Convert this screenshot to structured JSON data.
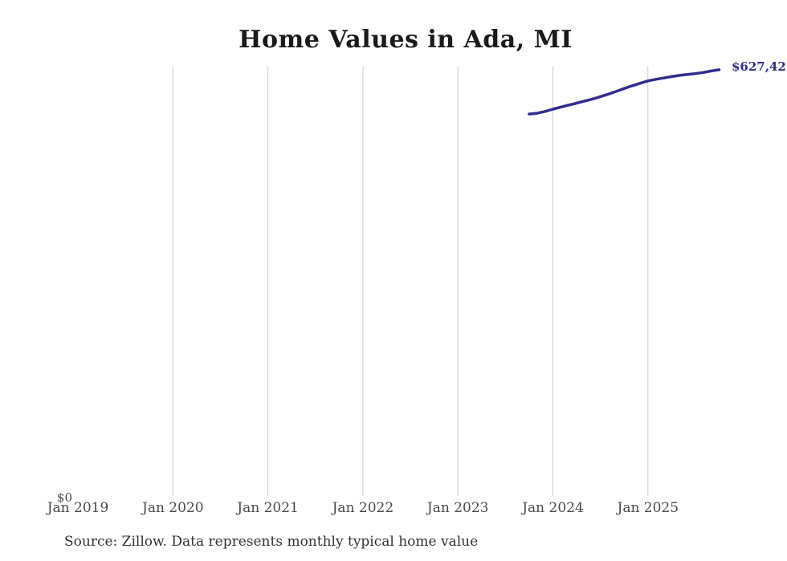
{
  "chart": {
    "title": "Home Values in Ada, MI",
    "source_note": "Source: Zillow. Data represents monthly typical home value",
    "y_zero_label": "$0",
    "end_label": "$627,42",
    "colors": {
      "line": "#322d8f",
      "grid": "#cccccc",
      "title_text": "#1a1a1a",
      "axis_text": "#4a4a4a"
    }
  },
  "chart_data": {
    "type": "line",
    "title": "Home Values in Ada, MI",
    "xlabel": "",
    "ylabel": "",
    "grid": "vertical-only",
    "legend_position": "none",
    "x_tick_labels": [
      "Jan 2019",
      "Jan 2020",
      "Jan 2021",
      "Jan 2022",
      "Jan 2023",
      "Jan 2024",
      "Jan 2025"
    ],
    "y_tick_labels": [
      "$0"
    ],
    "ylim": [
      0,
      632000
    ],
    "x_range": [
      "Jan 2019",
      "Oct 2025"
    ],
    "series": [
      {
        "name": "Monthly typical home value",
        "x": [
          "Oct 2023",
          "Nov 2023",
          "Dec 2023",
          "Jan 2024",
          "Feb 2024",
          "Mar 2024",
          "Apr 2024",
          "May 2024",
          "Jun 2024",
          "Jul 2024",
          "Aug 2024",
          "Sep 2024",
          "Oct 2024",
          "Nov 2024",
          "Dec 2024",
          "Jan 2025",
          "Feb 2025",
          "Mar 2025",
          "Apr 2025",
          "May 2025",
          "Jun 2025",
          "Jul 2025",
          "Aug 2025",
          "Sep 2025",
          "Oct 2025"
        ],
        "values": [
          562000,
          563200,
          565800,
          569300,
          572400,
          575300,
          578200,
          581200,
          584200,
          587700,
          591400,
          595400,
          599700,
          603700,
          607400,
          610900,
          613300,
          615200,
          617300,
          619100,
          620400,
          621700,
          623400,
          625600,
          627420
        ],
        "end_label": "$627,42"
      }
    ],
    "annotations": [
      {
        "text": "$627,42",
        "position": "line-end",
        "truncated_at_right_edge": true
      }
    ]
  }
}
